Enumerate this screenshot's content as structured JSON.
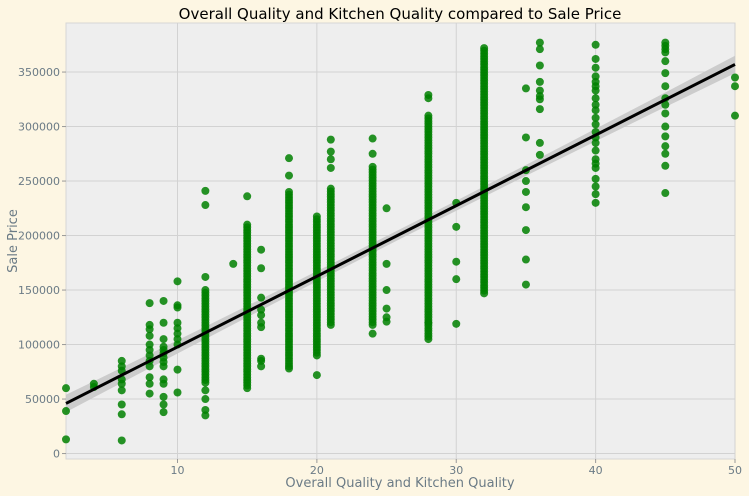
{
  "chart_data": {
    "type": "scatter",
    "title": "Overall Quality and Kitchen Quality compared to Sale Price",
    "xlabel": "Overall Quality and Kitchen Quality",
    "ylabel": "Sale Price",
    "xlim": [
      2,
      50
    ],
    "ylim": [
      -5000,
      395000
    ],
    "xticks": [
      10,
      20,
      30,
      40,
      50
    ],
    "yticks": [
      0,
      50000,
      100000,
      150000,
      200000,
      250000,
      300000,
      350000
    ],
    "grid": true,
    "point_color": "#008000",
    "line_color": "#000000",
    "band_color": "#c8c8c8",
    "background": "#eeeeee",
    "regression": {
      "x": [
        2,
        50
      ],
      "y": [
        46000,
        357000
      ]
    },
    "columns": [
      {
        "x": 2,
        "y": [
          60000,
          39000,
          13000
        ]
      },
      {
        "x": 4,
        "y": [
          64000,
          61000
        ]
      },
      {
        "x": 6,
        "y": [
          85000,
          80000,
          76000,
          68000,
          64000,
          58000,
          45000,
          36000,
          12000
        ]
      },
      {
        "x": 8,
        "y": [
          138000,
          118000,
          114000,
          108000,
          100000,
          95000,
          90000,
          85000,
          80000,
          70000,
          64000,
          55000
        ]
      },
      {
        "x": 9,
        "y": [
          140000,
          120000,
          105000,
          98000,
          95000,
          92000,
          88000,
          84000,
          80000,
          68000,
          64000,
          52000,
          45000,
          38000
        ]
      },
      {
        "x": 10,
        "y": [
          158000,
          136000,
          134000,
          120000,
          115000,
          110000,
          105000,
          100000,
          77000,
          56000
        ]
      },
      {
        "x": 12,
        "range": [
          65000,
          152000
        ],
        "y": [
          241000,
          228000,
          162000,
          58000,
          50000,
          40000,
          35000
        ]
      },
      {
        "x": 14,
        "y": [
          174000
        ]
      },
      {
        "x": 15,
        "range": [
          60000,
          212000
        ],
        "y": [
          236000
        ]
      },
      {
        "x": 16,
        "y": [
          187000,
          170000,
          143000,
          132000,
          127000,
          120000,
          116000,
          87000,
          85000,
          80000
        ]
      },
      {
        "x": 18,
        "range": [
          80000,
          240000
        ],
        "y": [
          271000,
          255000,
          78000
        ]
      },
      {
        "x": 20,
        "range": [
          90000,
          218000
        ],
        "y": [
          72000
        ]
      },
      {
        "x": 21,
        "range": [
          118000,
          245000
        ],
        "y": [
          288000,
          277000,
          270000,
          262000
        ]
      },
      {
        "x": 24,
        "range": [
          118000,
          265000
        ],
        "y": [
          289000,
          275000,
          110000
        ]
      },
      {
        "x": 25,
        "y": [
          225000,
          174000,
          150000,
          133000,
          125000,
          121000
        ]
      },
      {
        "x": 28,
        "range": [
          105000,
          310000
        ],
        "y": [
          329000,
          326000,
          120000
        ]
      },
      {
        "x": 30,
        "y": [
          230000,
          208000,
          176000,
          160000,
          119000
        ]
      },
      {
        "x": 32,
        "range": [
          147000,
          372000
        ],
        "y": []
      },
      {
        "x": 35,
        "y": [
          335000,
          290000,
          260000,
          250000,
          240000,
          226000,
          205000,
          178000,
          155000
        ]
      },
      {
        "x": 36,
        "y": [
          377000,
          371000,
          356000,
          341000,
          333000,
          328000,
          325000,
          316000,
          285000,
          274000
        ]
      },
      {
        "x": 40,
        "y": [
          375000,
          362000,
          354000,
          346000,
          341000,
          337000,
          333000,
          326000,
          320000,
          315000,
          308000,
          302000,
          295000,
          290000,
          285000,
          278000,
          270000,
          266000,
          262000,
          252000,
          245000,
          238000,
          230000
        ]
      },
      {
        "x": 45,
        "y": [
          377000,
          374000,
          371000,
          368000,
          360000,
          349000,
          337000,
          326000,
          320000,
          312000,
          300000,
          291000,
          282000,
          275000,
          264000,
          239000
        ]
      },
      {
        "x": 50,
        "y": [
          345000,
          337000,
          310000
        ]
      }
    ]
  }
}
